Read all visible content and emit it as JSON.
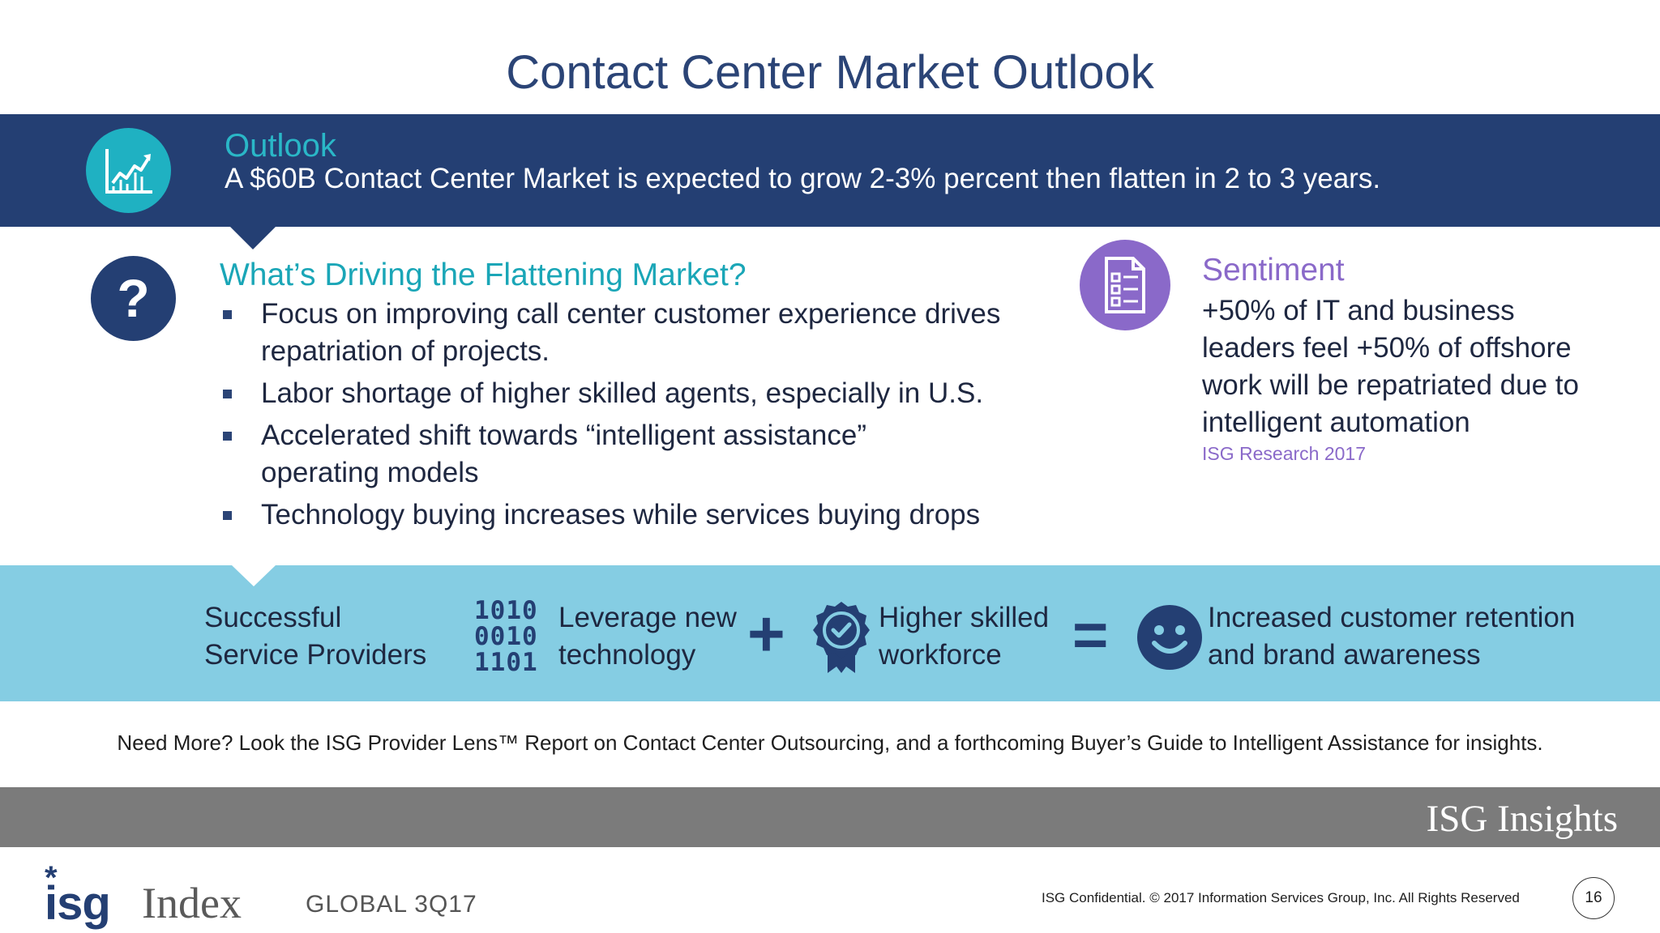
{
  "title": "Contact Center Market Outlook",
  "outlook": {
    "heading": "Outlook",
    "text": "A $60B Contact Center Market is expected to grow 2-3% percent then flatten in 2 to 3 years.",
    "icon": "trend-chart-icon"
  },
  "drivers": {
    "icon_label": "?",
    "heading": "What’s Driving the Flattening Market?",
    "items": [
      {
        "line1": "Focus on improving call center customer experience drives",
        "line2": "repatriation of projects."
      },
      {
        "line1": "Labor shortage of higher skilled agents, especially in U.S.",
        "line2": ""
      },
      {
        "line1": "Accelerated shift towards “intelligent assistance”",
        "line2": "operating models"
      },
      {
        "line1": "Technology buying increases while services buying drops",
        "line2": ""
      }
    ]
  },
  "sentiment": {
    "heading": "Sentiment",
    "lines": [
      "+50% of IT and business",
      "leaders feel +50% of offshore",
      "work will be repatriated due to",
      "intelligent automation"
    ],
    "source": "ISG Research 2017",
    "icon": "survey-document-icon"
  },
  "equation": {
    "providers": [
      "Successful",
      "Service Providers"
    ],
    "binary": [
      "1010",
      "0010",
      "1101"
    ],
    "technology": [
      "Leverage new",
      "technology"
    ],
    "plus": "+",
    "workforce": [
      "Higher skilled",
      "workforce"
    ],
    "equals": "=",
    "result": [
      "Increased customer retention",
      "and brand awareness"
    ]
  },
  "need_more": "Need More? Look the ISG Provider Lens™ Report on Contact Center Outsourcing, and a forthcoming Buyer’s Guide to Intelligent Assistance for insights.",
  "footer": {
    "insights": "ISG Insights",
    "logo_isg": "isg",
    "logo_index": "Index",
    "edition": "GLOBAL 3Q17",
    "confidential": "ISG Confidential. © 2017 Information Services Group, Inc.  All Rights Reserved",
    "page": "16"
  },
  "colors": {
    "navy": "#243f73",
    "teal": "#1fb1c2",
    "purple": "#8a69c9",
    "light_blue": "#85cde3",
    "grey": "#7b7b7b"
  }
}
